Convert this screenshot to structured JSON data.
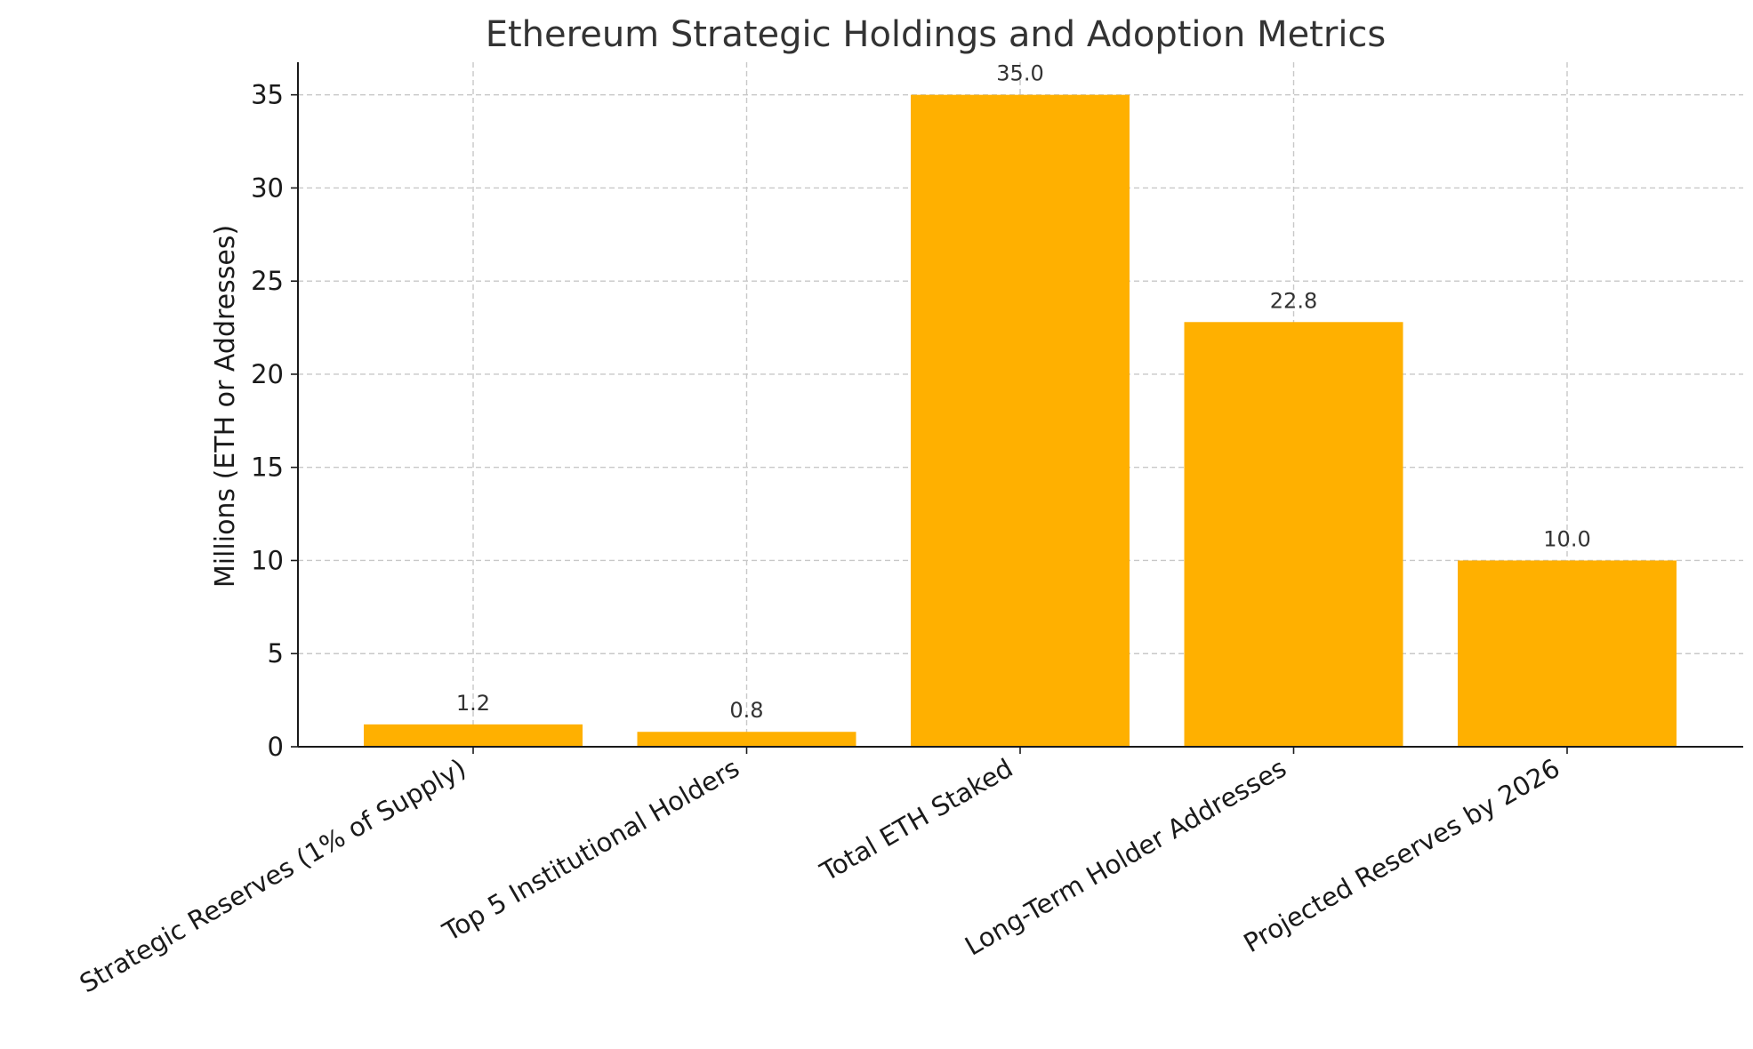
{
  "chart_data": {
    "type": "bar",
    "title": "Ethereum Strategic Holdings and Adoption Metrics",
    "xlabel": "",
    "ylabel": "Millions (ETH or Addresses)",
    "categories": [
      "Strategic Reserves (1% of Supply)",
      "Top 5 Institutional Holders",
      "Total ETH Staked",
      "Long-Term Holder Addresses",
      "Projected Reserves by 2026"
    ],
    "values": [
      1.2,
      0.8,
      35.0,
      22.8,
      10.0
    ],
    "value_labels": [
      "1.2",
      "0.8",
      "35.0",
      "22.8",
      "10.0"
    ],
    "ylim": [
      0,
      36.75
    ],
    "yticks": [
      0,
      5,
      10,
      15,
      20,
      25,
      30,
      35
    ],
    "ytick_labels": [
      "0",
      "5",
      "10",
      "15",
      "20",
      "25",
      "30",
      "35"
    ],
    "bar_color": "#FFB000",
    "grid": true,
    "legend": "none"
  }
}
